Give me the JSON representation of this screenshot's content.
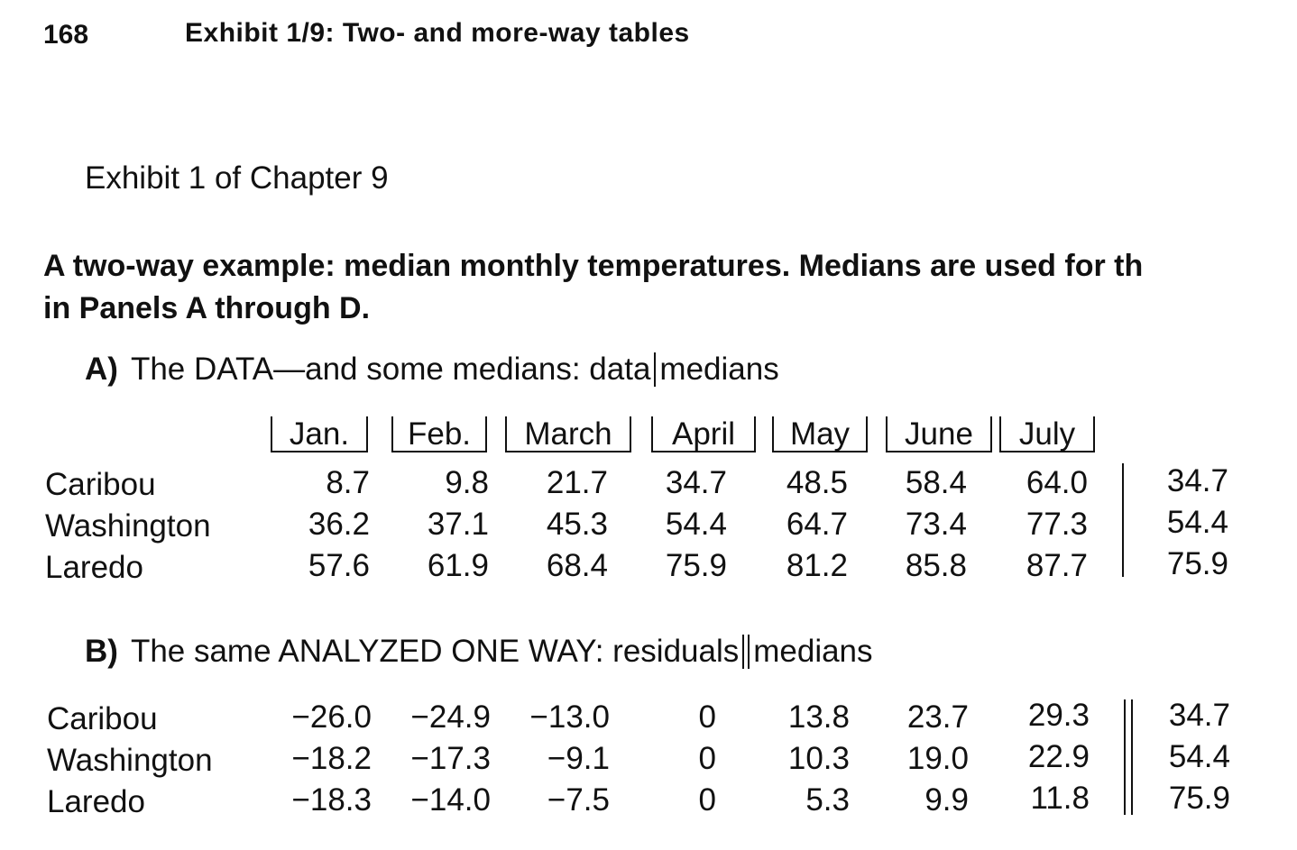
{
  "header": {
    "page_number": "168",
    "running_head": "Exhibit 1/9: Two- and more-way tables"
  },
  "exhibit_title": "Exhibit 1 of Chapter 9",
  "caption": {
    "line1": "A two-way example: median monthly temperatures. Medians are used for th",
    "line2": "in Panels A through D."
  },
  "panel_a": {
    "letter": "A)",
    "title_before": "The DATA—and some medians: data",
    "title_after": "medians",
    "months": [
      "Jan.",
      "Feb.",
      "March",
      "April",
      "May",
      "June",
      "July"
    ],
    "rows": [
      {
        "label": "Caribou",
        "values": [
          "8.7",
          "9.8",
          "21.7",
          "34.7",
          "48.5",
          "58.4",
          "64.0"
        ],
        "median": "34.7"
      },
      {
        "label": "Washington",
        "values": [
          "36.2",
          "37.1",
          "45.3",
          "54.4",
          "64.7",
          "73.4",
          "77.3"
        ],
        "median": "54.4"
      },
      {
        "label": "Laredo",
        "values": [
          "57.6",
          "61.9",
          "68.4",
          "75.9",
          "81.2",
          "85.8",
          "87.7"
        ],
        "median": "75.9"
      }
    ]
  },
  "panel_b": {
    "letter": "B)",
    "title_before": "The same ANALYZED ONE WAY: residuals",
    "title_after": "medians",
    "rows": [
      {
        "label": "Caribou",
        "values": [
          "−26.0",
          "−24.9",
          "−13.0",
          "0",
          "13.8",
          "23.7",
          "29.3"
        ],
        "median": "34.7"
      },
      {
        "label": "Washington",
        "values": [
          "−18.2",
          "−17.3",
          "−9.1",
          "0",
          "10.3",
          "19.0",
          "22.9"
        ],
        "median": "54.4"
      },
      {
        "label": "Laredo",
        "values": [
          "−18.3",
          "−14.0",
          "−7.5",
          "0",
          "5.3",
          "9.9",
          "11.8"
        ],
        "median": "75.9"
      }
    ]
  }
}
